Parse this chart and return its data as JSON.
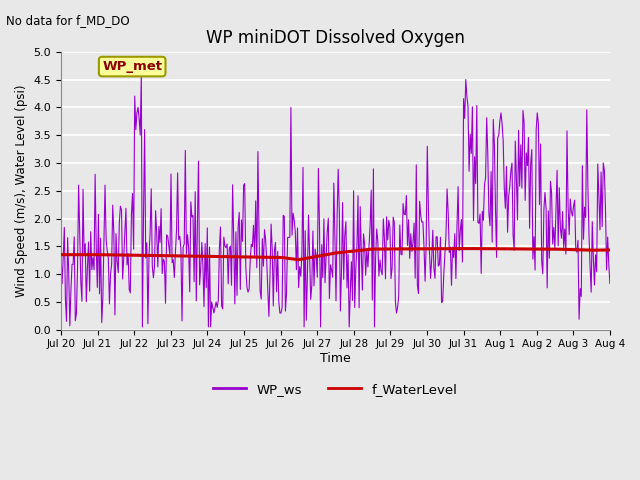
{
  "title": "WP miniDOT Dissolved Oxygen",
  "annotation": "No data for f_MD_DO",
  "xlabel": "Time",
  "ylabel": "Wind Speed (m/s), Water Level (psi)",
  "ylim": [
    0.0,
    5.0
  ],
  "yticks": [
    0.0,
    0.5,
    1.0,
    1.5,
    2.0,
    2.5,
    3.0,
    3.5,
    4.0,
    4.5,
    5.0
  ],
  "wp_met_label": "WP_met",
  "legend_entries": [
    "WP_ws",
    "f_WaterLevel"
  ],
  "ws_color": "#9900CC",
  "wl_color": "#CC0000",
  "bg_color": "#E8E8E8",
  "x_tick_labels": [
    "Jul 20",
    "Jul 21",
    "Jul 22",
    "Jul 23",
    "Jul 24",
    "Jul 25",
    "Jul 26",
    "Jul 27",
    "Jul 28",
    "Jul 29",
    "Jul 30",
    "Jul 31",
    "Aug 1",
    "Aug 2",
    "Aug 3",
    "Aug 4"
  ],
  "n_points": 500,
  "seed": 42
}
